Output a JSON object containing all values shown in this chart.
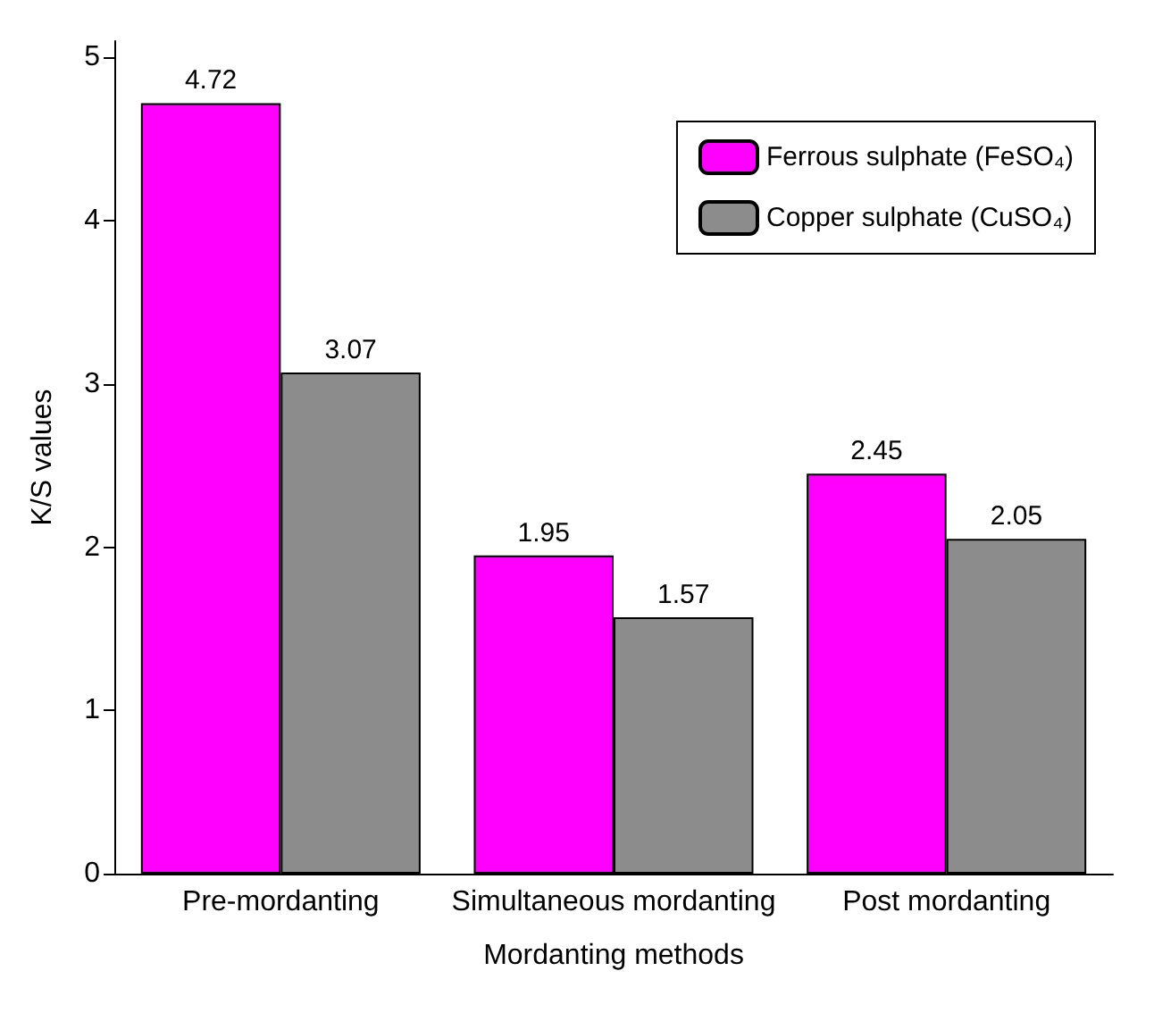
{
  "chart_data": {
    "type": "bar",
    "xlabel": "Mordanting methods",
    "ylabel": "K/S values",
    "categories": [
      "Pre-mordanting",
      "Simultaneous mordanting",
      "Post mordanting"
    ],
    "series": [
      {
        "name": "Ferrous sulphate (FeSO₄)",
        "color": "#ff00ff",
        "values": [
          4.72,
          1.95,
          2.45
        ]
      },
      {
        "name": "Copper sulphate (CuSO₄)",
        "color": "#8c8c8c",
        "values": [
          3.07,
          1.57,
          2.05
        ]
      }
    ],
    "ylim": [
      0,
      5.1
    ],
    "yticks": [
      0,
      1,
      2,
      3,
      4,
      5
    ],
    "grid": false,
    "legend": "top right",
    "data_labels": true
  }
}
